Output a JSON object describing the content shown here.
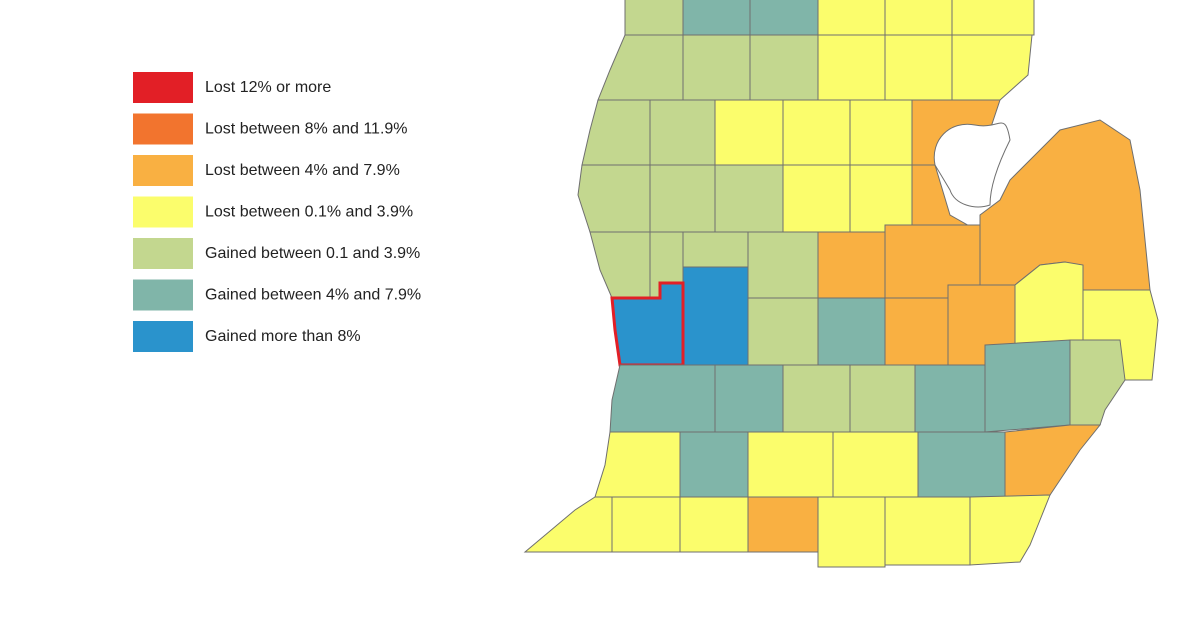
{
  "legend": {
    "items": [
      {
        "label": "Lost 12% or more",
        "color": "#e21f26"
      },
      {
        "label": "Lost between 8% and 11.9%",
        "color": "#f2742e"
      },
      {
        "label": "Lost between 4% and 7.9%",
        "color": "#f9b042"
      },
      {
        "label": "Lost between 0.1% and 3.9%",
        "color": "#fbfd6c"
      },
      {
        "label": "Gained between 0.1 and 3.9%",
        "color": "#c3d78f"
      },
      {
        "label": "Gained between 4% and 7.9%",
        "color": "#80b5a9"
      },
      {
        "label": "Gained more than 8%",
        "color": "#2a93cc"
      }
    ]
  }
}
